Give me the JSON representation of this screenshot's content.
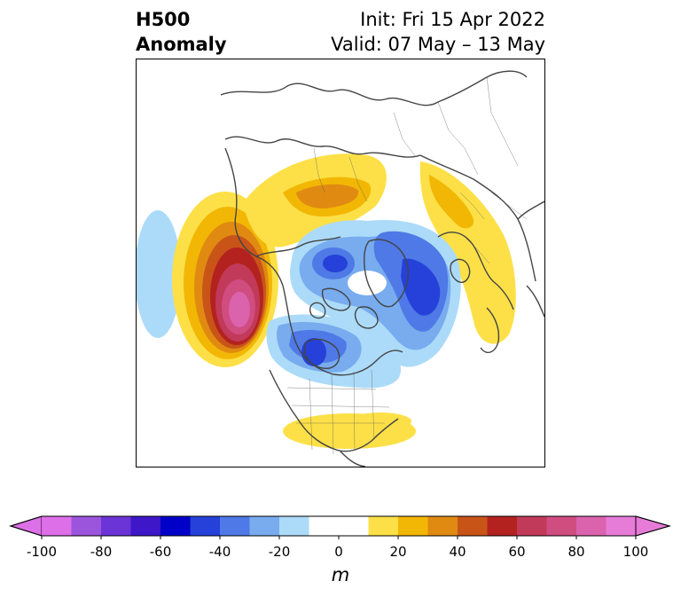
{
  "title": {
    "left_line1": "H500",
    "left_line2": "Anomaly",
    "right_line1": "Init: Fri 15 Apr 2022",
    "right_line2": "Valid: 07 May – 13 May"
  },
  "colorbar": {
    "unit": "m",
    "ticks": [
      "-100",
      "-80",
      "-60",
      "-40",
      "-20",
      "0",
      "20",
      "40",
      "60",
      "80",
      "100"
    ],
    "tick_values": [
      -100,
      -80,
      -60,
      -40,
      -20,
      0,
      20,
      40,
      60,
      80,
      100
    ],
    "range": [
      -100,
      100
    ],
    "extend": "both",
    "colors": [
      "#dd6fe8",
      "#9b55dd",
      "#6a34d6",
      "#3d17c8",
      "#0000c8",
      "#2541d9",
      "#4f79e6",
      "#78acef",
      "#acdbf9",
      "#ffffff",
      "#ffffff",
      "#fde047",
      "#f2b705",
      "#e08a12",
      "#c95418",
      "#b3221f",
      "#c23a5a",
      "#d04d80",
      "#db63ad",
      "#e77bd8"
    ]
  },
  "map": {
    "projection": "north-polar-stereographic",
    "colors": {
      "coast": "#444444",
      "positive_anomaly": "#fde047",
      "negative_anomaly": "#4f79e6"
    }
  }
}
